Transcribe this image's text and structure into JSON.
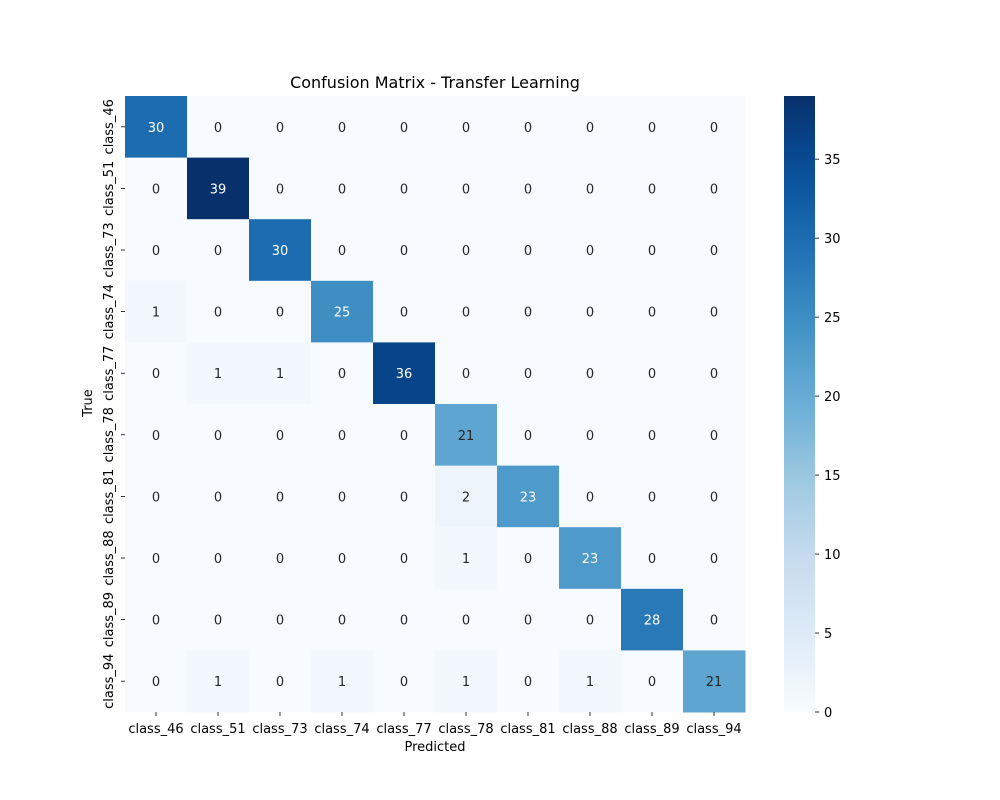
{
  "chart_data": {
    "type": "heatmap",
    "title": "Confusion Matrix - Transfer Learning",
    "xlabel": "Predicted",
    "ylabel": "True",
    "x_categories": [
      "class_46",
      "class_51",
      "class_73",
      "class_74",
      "class_77",
      "class_78",
      "class_81",
      "class_88",
      "class_89",
      "class_94"
    ],
    "y_categories": [
      "class_46",
      "class_51",
      "class_73",
      "class_74",
      "class_77",
      "class_78",
      "class_81",
      "class_88",
      "class_89",
      "class_94"
    ],
    "values": [
      [
        30,
        0,
        0,
        0,
        0,
        0,
        0,
        0,
        0,
        0
      ],
      [
        0,
        39,
        0,
        0,
        0,
        0,
        0,
        0,
        0,
        0
      ],
      [
        0,
        0,
        30,
        0,
        0,
        0,
        0,
        0,
        0,
        0
      ],
      [
        1,
        0,
        0,
        25,
        0,
        0,
        0,
        0,
        0,
        0
      ],
      [
        0,
        1,
        1,
        0,
        36,
        0,
        0,
        0,
        0,
        0
      ],
      [
        0,
        0,
        0,
        0,
        0,
        21,
        0,
        0,
        0,
        0
      ],
      [
        0,
        0,
        0,
        0,
        0,
        2,
        23,
        0,
        0,
        0
      ],
      [
        0,
        0,
        0,
        0,
        0,
        1,
        0,
        23,
        0,
        0
      ],
      [
        0,
        0,
        0,
        0,
        0,
        0,
        0,
        0,
        28,
        0
      ],
      [
        0,
        1,
        0,
        1,
        0,
        1,
        0,
        1,
        0,
        21
      ]
    ],
    "colormap": "Blues",
    "vmin": 0,
    "vmax": 39,
    "colorbar_ticks": [
      0,
      5,
      10,
      15,
      20,
      25,
      30,
      35
    ],
    "annotations": true,
    "legend": "colorbar-right"
  }
}
